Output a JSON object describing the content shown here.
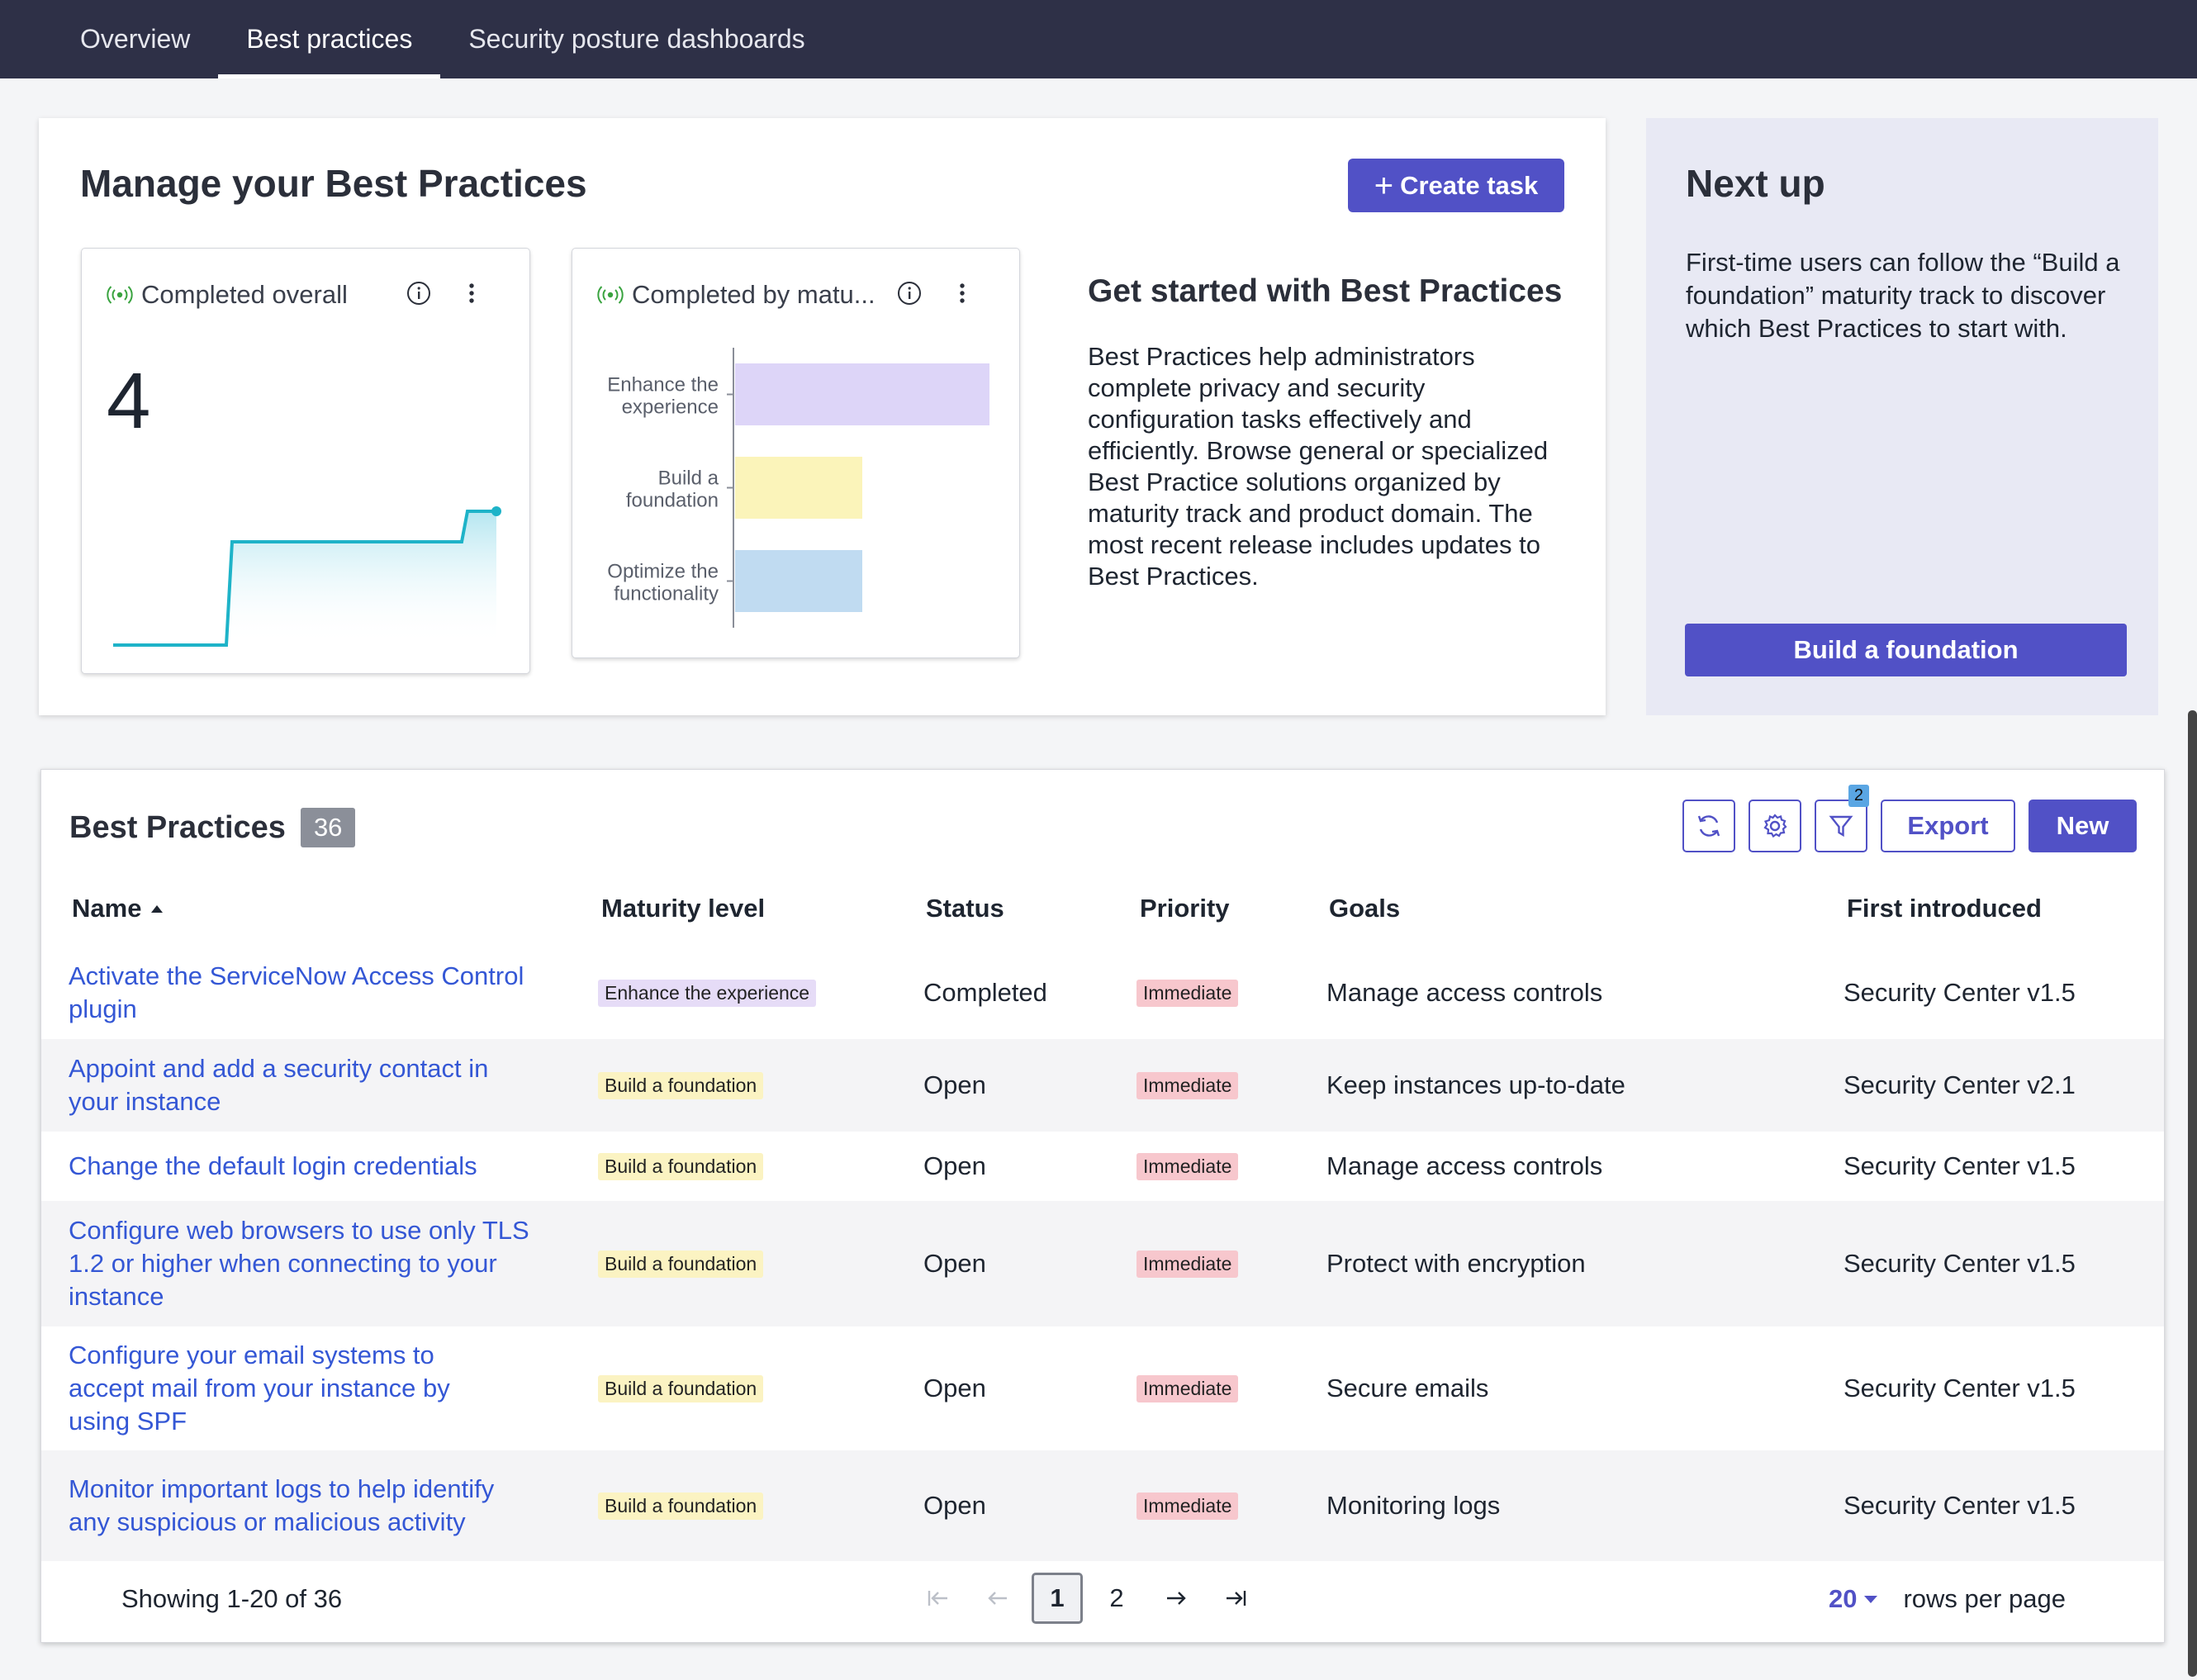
{
  "nav": {
    "tabs": [
      {
        "label": "Overview",
        "active": false
      },
      {
        "label": "Best practices",
        "active": true
      },
      {
        "label": "Security posture dashboards",
        "active": false
      }
    ]
  },
  "manage": {
    "title": "Manage your Best Practices",
    "create_task_label": "Create task",
    "widget_overall": {
      "title": "Completed overall",
      "value": "4"
    },
    "widget_maturity": {
      "title": "Completed by matu...",
      "chart_data": {
        "type": "bar",
        "orientation": "horizontal",
        "categories": [
          "Enhance the experience",
          "Build a foundation",
          "Optimize the functionality"
        ],
        "values": [
          2,
          1,
          1
        ],
        "colors": [
          "#ddd5f8",
          "#fbf4ba",
          "#c0dbf1"
        ]
      }
    },
    "get_started": {
      "title": "Get started with Best Practices",
      "body": "Best Practices help administrators complete privacy and security configuration tasks effectively and efficiently. Browse general or specialized Best Practice solutions organized by maturity track and product domain. The most recent release includes updates to Best Practices."
    }
  },
  "next_up": {
    "title": "Next up",
    "body": "First-time users can follow the “Build a foundation” maturity track to discover which Best Practices to start with.",
    "button_label": "Build a foundation"
  },
  "list": {
    "title": "Best Practices",
    "count": "36",
    "filter_count": "2",
    "export_label": "Export",
    "new_label": "New",
    "columns": [
      "Name",
      "Maturity level",
      "Status",
      "Priority",
      "Goals",
      "First introduced"
    ],
    "rows": [
      {
        "name": "Activate the ServiceNow Access Control plugin",
        "maturity": "Enhance the experience",
        "maturity_kind": "enhance",
        "status": "Completed",
        "priority": "Immediate",
        "goals": "Manage access controls",
        "introduced": "Security Center v1.5"
      },
      {
        "name": "Appoint and add a security contact in your instance",
        "maturity": "Build a foundation",
        "maturity_kind": "build",
        "status": "Open",
        "priority": "Immediate",
        "goals": "Keep instances up-to-date",
        "introduced": "Security Center v2.1"
      },
      {
        "name": "Change the default login credentials",
        "maturity": "Build a foundation",
        "maturity_kind": "build",
        "status": "Open",
        "priority": "Immediate",
        "goals": "Manage access controls",
        "introduced": "Security Center v1.5"
      },
      {
        "name": "Configure web browsers to use only TLS 1.2 or higher when connecting to your instance",
        "maturity": "Build a foundation",
        "maturity_kind": "build",
        "status": "Open",
        "priority": "Immediate",
        "goals": "Protect with encryption",
        "introduced": "Security Center v1.5"
      },
      {
        "name": "Configure your email systems to accept mail from your instance by using SPF",
        "maturity": "Build a foundation",
        "maturity_kind": "build",
        "status": "Open",
        "priority": "Immediate",
        "goals": "Secure emails",
        "introduced": "Security Center v1.5"
      },
      {
        "name": "Monitor important logs to help identify any suspicious or malicious activity",
        "maturity": "Build a foundation",
        "maturity_kind": "build",
        "status": "Open",
        "priority": "Immediate",
        "goals": "Monitoring logs",
        "introduced": "Security Center v1.5"
      }
    ],
    "footer": {
      "showing": "Showing 1-20 of 36",
      "pages": [
        "1",
        "2"
      ],
      "current_page": "1",
      "rows_per_page_value": "20",
      "rows_per_page_label": "rows per page"
    }
  },
  "colors": {
    "nav_bg": "#2e3047",
    "primary": "#5151c6",
    "link": "#3457d5",
    "sparkline": "#1eb3c8"
  },
  "icons": [
    "live-icon",
    "info-icon",
    "more-vertical-icon",
    "plus-icon",
    "refresh-icon",
    "gear-icon",
    "filter-icon",
    "sort-asc-icon",
    "first-page-icon",
    "prev-page-icon",
    "next-page-icon",
    "last-page-icon",
    "caret-down-icon"
  ]
}
